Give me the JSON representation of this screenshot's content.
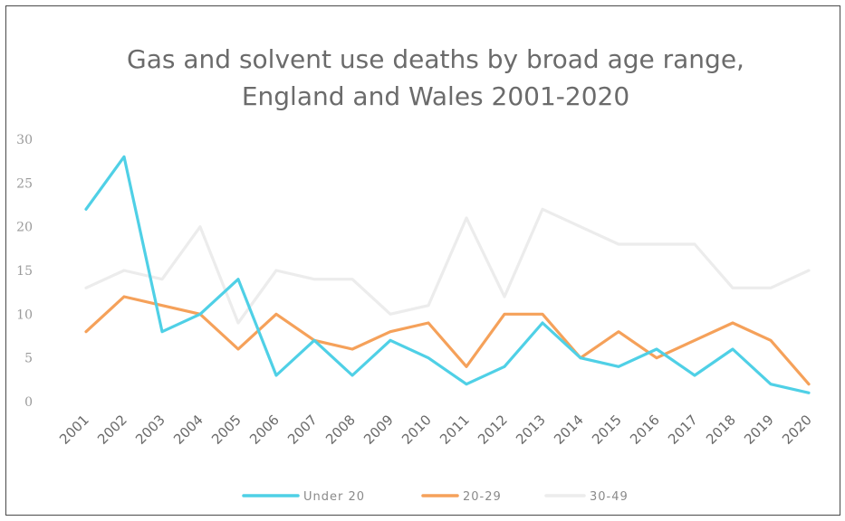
{
  "chart_data": {
    "type": "line",
    "title": [
      "Gas and solvent use deaths by broad age range,",
      "England and Wales 2001-2020"
    ],
    "xlabel": "",
    "ylabel": "",
    "ylim": [
      0,
      30
    ],
    "yticks": [
      "0",
      "5",
      "10",
      "15",
      "20",
      "25",
      "30"
    ],
    "categories": [
      "2001",
      "2002",
      "2003",
      "2004",
      "2005",
      "2006",
      "2007",
      "2008",
      "2009",
      "2010",
      "2011",
      "2012",
      "2013",
      "2014",
      "2015",
      "2016",
      "2017",
      "2018",
      "2019",
      "2020"
    ],
    "grid": false,
    "legend_position": "bottom",
    "series": [
      {
        "name": "Under 20",
        "color": "#4fd0e6",
        "values": [
          22,
          28,
          8,
          10,
          14,
          3,
          7,
          3,
          7,
          5,
          2,
          4,
          9,
          5,
          4,
          6,
          3,
          6,
          2,
          1
        ]
      },
      {
        "name": "20-29",
        "color": "#f5a15a",
        "values": [
          8,
          12,
          11,
          10,
          6,
          10,
          7,
          6,
          8,
          9,
          4,
          10,
          10,
          5,
          8,
          5,
          7,
          9,
          7,
          2
        ]
      },
      {
        "name": "30-49",
        "color": "#ececec",
        "values": [
          13,
          15,
          14,
          20,
          9,
          15,
          14,
          14,
          10,
          11,
          21,
          12,
          22,
          20,
          18,
          18,
          18,
          13,
          13,
          15
        ]
      }
    ]
  }
}
